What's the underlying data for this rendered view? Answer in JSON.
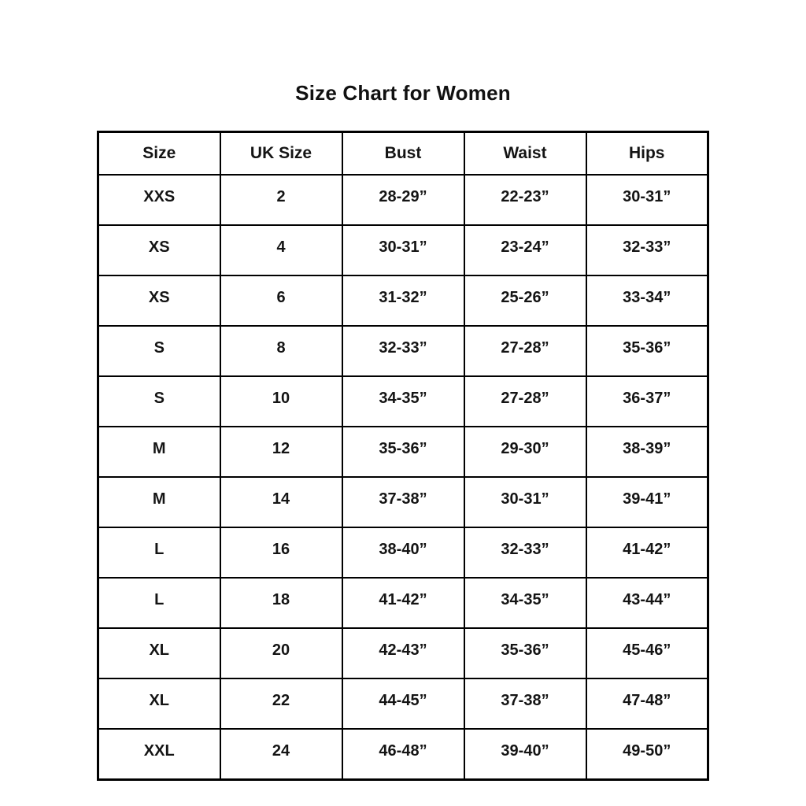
{
  "title": "Size Chart for Women",
  "table": {
    "columns": [
      "Size",
      "UK Size",
      "Bust",
      "Waist",
      "Hips"
    ],
    "rows": [
      [
        "XXS",
        "2",
        "28-29”",
        "22-23”",
        "30-31”"
      ],
      [
        "XS",
        "4",
        "30-31”",
        "23-24”",
        "32-33”"
      ],
      [
        "XS",
        "6",
        "31-32”",
        "25-26”",
        "33-34”"
      ],
      [
        "S",
        "8",
        "32-33”",
        "27-28”",
        "35-36”"
      ],
      [
        "S",
        "10",
        "34-35”",
        "27-28”",
        "36-37”"
      ],
      [
        "M",
        "12",
        "35-36”",
        "29-30”",
        "38-39”"
      ],
      [
        "M",
        "14",
        "37-38”",
        "30-31”",
        "39-41”"
      ],
      [
        "L",
        "16",
        "38-40”",
        "32-33”",
        "41-42”"
      ],
      [
        "L",
        "18",
        "41-42”",
        "34-35”",
        "43-44”"
      ],
      [
        "XL",
        "20",
        "42-43”",
        "35-36”",
        "45-46”"
      ],
      [
        "XL",
        "22",
        "44-45”",
        "37-38”",
        "47-48”"
      ],
      [
        "XXL",
        "24",
        "46-48”",
        "39-40”",
        "49-50”"
      ]
    ]
  },
  "colors": {
    "background": "#ffffff",
    "border": "#000000",
    "text": "#141414"
  },
  "chart_data": {
    "type": "table",
    "title": "Size Chart for Women",
    "columns": [
      "Size",
      "UK Size",
      "Bust",
      "Waist",
      "Hips"
    ],
    "rows": [
      {
        "size": "XXS",
        "uk_size": 2,
        "bust": "28-29”",
        "waist": "22-23”",
        "hips": "30-31”"
      },
      {
        "size": "XS",
        "uk_size": 4,
        "bust": "30-31”",
        "waist": "23-24”",
        "hips": "32-33”"
      },
      {
        "size": "XS",
        "uk_size": 6,
        "bust": "31-32”",
        "waist": "25-26”",
        "hips": "33-34”"
      },
      {
        "size": "S",
        "uk_size": 8,
        "bust": "32-33”",
        "waist": "27-28”",
        "hips": "35-36”"
      },
      {
        "size": "S",
        "uk_size": 10,
        "bust": "34-35”",
        "waist": "27-28”",
        "hips": "36-37”"
      },
      {
        "size": "M",
        "uk_size": 12,
        "bust": "35-36”",
        "waist": "29-30”",
        "hips": "38-39”"
      },
      {
        "size": "M",
        "uk_size": 14,
        "bust": "37-38”",
        "waist": "30-31”",
        "hips": "39-41”"
      },
      {
        "size": "L",
        "uk_size": 16,
        "bust": "38-40”",
        "waist": "32-33”",
        "hips": "41-42”"
      },
      {
        "size": "L",
        "uk_size": 18,
        "bust": "41-42”",
        "waist": "34-35”",
        "hips": "43-44”"
      },
      {
        "size": "XL",
        "uk_size": 20,
        "bust": "42-43”",
        "waist": "35-36”",
        "hips": "45-46”"
      },
      {
        "size": "XL",
        "uk_size": 22,
        "bust": "44-45”",
        "waist": "37-38”",
        "hips": "47-48”"
      },
      {
        "size": "XXL",
        "uk_size": 24,
        "bust": "46-48”",
        "waist": "39-40”",
        "hips": "49-50”"
      }
    ],
    "layout": {
      "grid": true,
      "header_row": true,
      "text_align": "center"
    }
  }
}
